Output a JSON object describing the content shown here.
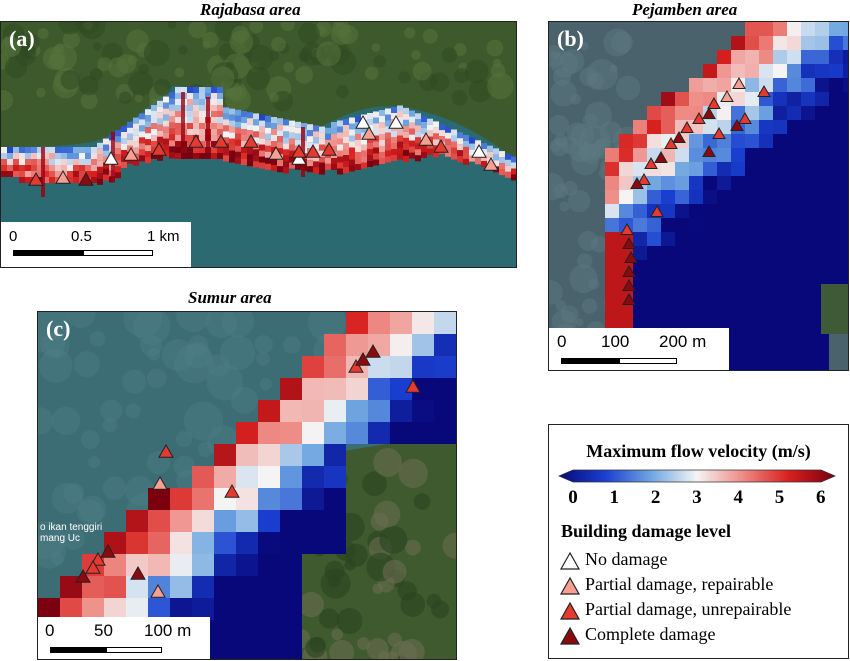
{
  "panels": {
    "a": {
      "label": "(a)",
      "title": "Rajabasa area",
      "scale": {
        "t0": "0",
        "t1": "0.5",
        "t2": "1 km"
      }
    },
    "b": {
      "label": "(b)",
      "title": "Pejamben area",
      "scale": {
        "t0": "0",
        "t1": "100",
        "t2": "200 m"
      }
    },
    "c": {
      "label": "(c)",
      "title": "Sumur area",
      "scale": {
        "t0": "0",
        "t1": "50",
        "t2": "100 m"
      },
      "map_text": "o ikan tenggiri mang Uc"
    }
  },
  "legend": {
    "velocity_title": "Maximum flow velocity (m/s)",
    "ticks": [
      "0",
      "1",
      "2",
      "3",
      "4",
      "5",
      "6"
    ],
    "colormap": [
      "#08087a",
      "#1a3fd0",
      "#6fa6e0",
      "#f4f4f4",
      "#ee8a84",
      "#d7201e",
      "#7a0010"
    ],
    "damage_title": "Building damage level",
    "damage_levels": [
      {
        "label": "No damage",
        "color": "#ffffff",
        "icon": "triangle-icon"
      },
      {
        "label": "Partial damage, repairable",
        "color": "#f7a092",
        "icon": "triangle-icon"
      },
      {
        "label": "Partial damage, unrepairable",
        "color": "#e6392f",
        "icon": "triangle-icon"
      },
      {
        "label": "Complete damage",
        "color": "#8b0a10",
        "icon": "triangle-icon"
      }
    ]
  },
  "colors": {
    "sea": "#2a6a70",
    "land": "#3d5a2c",
    "border": "#222222"
  }
}
